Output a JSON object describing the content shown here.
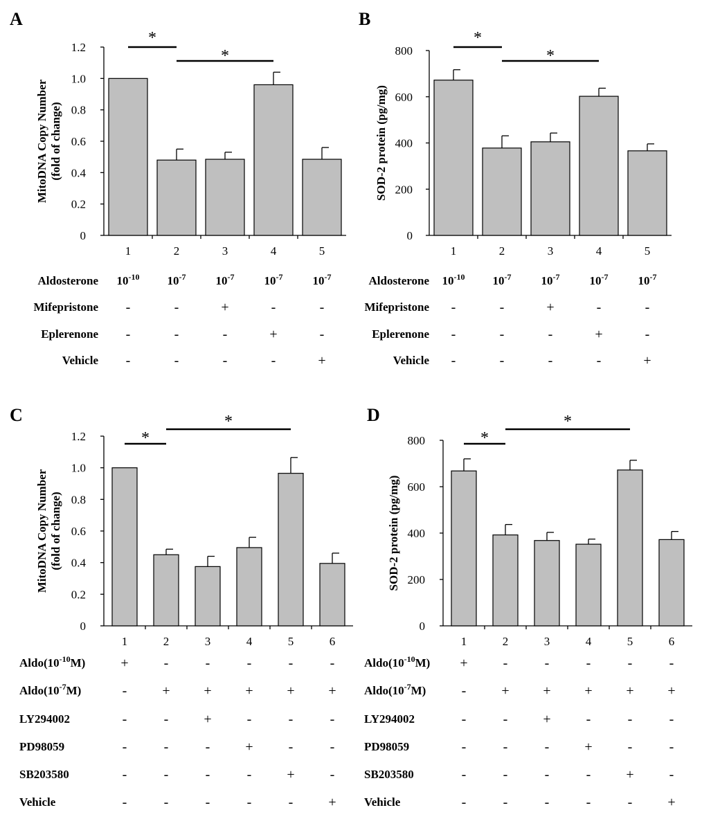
{
  "chart_data": [
    {
      "id": "A",
      "type": "bar",
      "panel_label": "A",
      "ylabel": [
        "MitoDNA Copy Number",
        "(fold of change)"
      ],
      "yticks": [
        "0",
        "0.2",
        "0.4",
        "0.6",
        "0.8",
        "1.0",
        "1.2"
      ],
      "ylim": [
        0,
        1.2
      ],
      "categories": [
        "1",
        "2",
        "3",
        "4",
        "5"
      ],
      "values": [
        1.0,
        0.48,
        0.485,
        0.96,
        0.485
      ],
      "errors": [
        0,
        0.07,
        0.045,
        0.08,
        0.075
      ],
      "significance": [
        {
          "from": 1,
          "to": 2,
          "label": "*"
        },
        {
          "from": 2,
          "to": 4,
          "label": "*"
        }
      ],
      "treatments": [
        {
          "name": "Aldosterone",
          "values": [
            "10",
            "10",
            "10",
            "10",
            "10"
          ],
          "exponents": [
            "-10",
            "-7",
            "-7",
            "-7",
            "-7"
          ]
        },
        {
          "name": "Mifepristone",
          "values": [
            "-",
            "-",
            "+",
            "-",
            "-"
          ]
        },
        {
          "name": "Eplerenone",
          "values": [
            "-",
            "-",
            "-",
            "+",
            "-"
          ]
        },
        {
          "name": "Vehicle",
          "values": [
            "-",
            "-",
            "-",
            "-",
            "+"
          ]
        }
      ]
    },
    {
      "id": "B",
      "type": "bar",
      "panel_label": "B",
      "ylabel": [
        "SOD-2 protein (pg/mg)"
      ],
      "yticks": [
        "0",
        "200",
        "400",
        "600",
        "800"
      ],
      "ylim": [
        0,
        800
      ],
      "categories": [
        "1",
        "2",
        "3",
        "4",
        "5"
      ],
      "values": [
        672,
        378,
        405,
        602,
        366
      ],
      "errors": [
        45,
        53,
        38,
        35,
        30
      ],
      "significance": [
        {
          "from": 1,
          "to": 2,
          "label": "*"
        },
        {
          "from": 2,
          "to": 4,
          "label": "*"
        }
      ],
      "treatments": [
        {
          "name": "Aldosterone",
          "values": [
            "10",
            "10",
            "10",
            "10",
            "10"
          ],
          "exponents": [
            "-10",
            "-7",
            "-7",
            "-7",
            "-7"
          ]
        },
        {
          "name": "Mifepristone",
          "values": [
            "-",
            "-",
            "+",
            "-",
            "-"
          ]
        },
        {
          "name": "Eplerenone",
          "values": [
            "-",
            "-",
            "-",
            "+",
            "-"
          ]
        },
        {
          "name": "Vehicle",
          "values": [
            "-",
            "-",
            "-",
            "-",
            "+"
          ]
        }
      ]
    },
    {
      "id": "C",
      "type": "bar",
      "panel_label": "C",
      "ylabel": [
        "MitoDNA Copy Number",
        "(fold of change)"
      ],
      "yticks": [
        "0",
        "0.2",
        "0.4",
        "0.6",
        "0.8",
        "1.0",
        "1.2"
      ],
      "ylim": [
        0,
        1.2
      ],
      "categories": [
        "1",
        "2",
        "3",
        "4",
        "5",
        "6"
      ],
      "values": [
        1.0,
        0.45,
        0.375,
        0.495,
        0.965,
        0.395
      ],
      "errors": [
        0,
        0.035,
        0.065,
        0.065,
        0.1,
        0.065
      ],
      "significance": [
        {
          "from": 1,
          "to": 2,
          "label": "*"
        },
        {
          "from": 2,
          "to": 5,
          "label": "*"
        }
      ],
      "treatments": [
        {
          "name": "Aldo(10",
          "name_exp": "-10",
          "name_suffix": "M)",
          "values": [
            "+",
            "-",
            "-",
            "-",
            "-",
            "-"
          ]
        },
        {
          "name": "Aldo(10",
          "name_exp": "-7",
          "name_suffix": "M)",
          "values": [
            "-",
            "+",
            "+",
            "+",
            "+",
            "+"
          ]
        },
        {
          "name": "LY294002",
          "values": [
            "-",
            "-",
            "+",
            "-",
            "-",
            "-"
          ]
        },
        {
          "name": "PD98059",
          "values": [
            "-",
            "-",
            "-",
            "+",
            "-",
            "-"
          ]
        },
        {
          "name": "SB203580",
          "values": [
            "-",
            "-",
            "-",
            "-",
            "+",
            "-"
          ]
        },
        {
          "name": "Vehicle",
          "values": [
            "-",
            "-",
            "-",
            "-",
            "-",
            "+"
          ]
        }
      ]
    },
    {
      "id": "D",
      "type": "bar",
      "panel_label": "D",
      "ylabel": [
        "SOD-2 protein (pg/mg)"
      ],
      "yticks": [
        "0",
        "200",
        "400",
        "600",
        "800"
      ],
      "ylim": [
        0,
        800
      ],
      "categories": [
        "1",
        "2",
        "3",
        "4",
        "5",
        "6"
      ],
      "values": [
        668,
        392,
        368,
        352,
        672,
        372
      ],
      "errors": [
        52,
        45,
        35,
        22,
        42,
        35
      ],
      "significance": [
        {
          "from": 1,
          "to": 2,
          "label": "*"
        },
        {
          "from": 2,
          "to": 5,
          "label": "*"
        }
      ],
      "treatments": [
        {
          "name": "Aldo(10",
          "name_exp": "-10",
          "name_suffix": "M)",
          "values": [
            "+",
            "-",
            "-",
            "-",
            "-",
            "-"
          ]
        },
        {
          "name": "Aldo(10",
          "name_exp": "-7",
          "name_suffix": "M)",
          "values": [
            "-",
            "+",
            "+",
            "+",
            "+",
            "+"
          ]
        },
        {
          "name": "LY294002",
          "values": [
            "-",
            "-",
            "+",
            "-",
            "-",
            "-"
          ]
        },
        {
          "name": "PD98059",
          "values": [
            "-",
            "-",
            "-",
            "+",
            "-",
            "-"
          ]
        },
        {
          "name": "SB203580",
          "values": [
            "-",
            "-",
            "-",
            "-",
            "+",
            "-"
          ]
        },
        {
          "name": "Vehicle",
          "values": [
            "-",
            "-",
            "-",
            "-",
            "-",
            "+"
          ]
        }
      ]
    }
  ]
}
